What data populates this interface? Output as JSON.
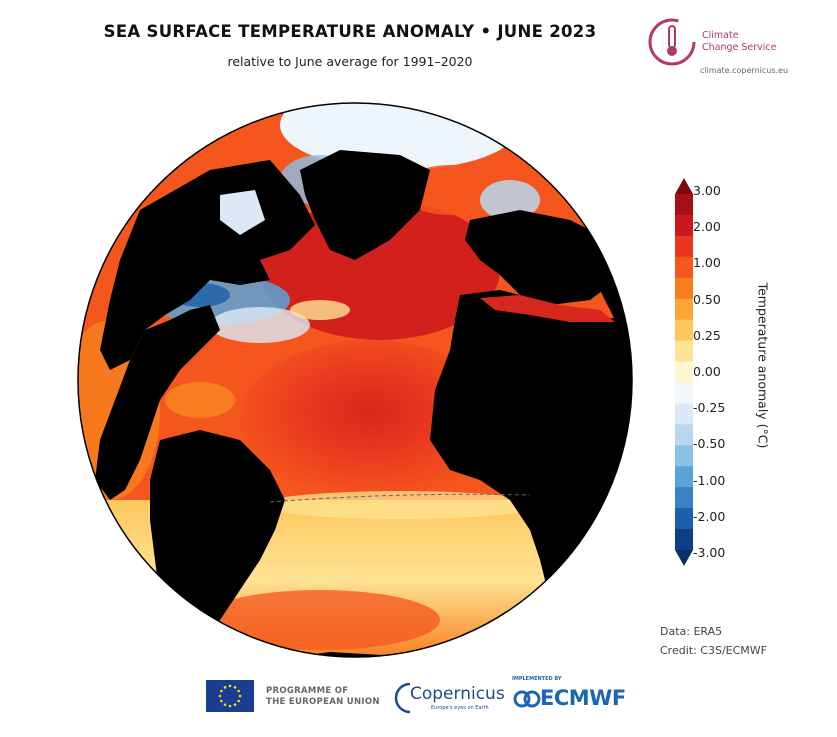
{
  "header": {
    "title": "SEA SURFACE TEMPERATURE ANOMALY • JUNE 2023",
    "subtitle": "relative to June average for 1991–2020"
  },
  "logo_c3s": {
    "line1": "Climate",
    "line2": "Change Service",
    "url": "climate.copernicus.eu"
  },
  "colorbar": {
    "title": "Temperature anomaly (°C)",
    "ticks": [
      "3.00",
      "2.00",
      "1.00",
      "0.50",
      "0.25",
      "0.00",
      "-0.25",
      "-0.50",
      "-1.00",
      "-2.00",
      "-3.00"
    ],
    "colors": [
      "#a50f15",
      "#cb181d",
      "#e8361f",
      "#f4561d",
      "#f77d1f",
      "#fba534",
      "#fdc75c",
      "#fee394",
      "#fff6d0",
      "#f3f8fc",
      "#dbeaf6",
      "#b9d8ef",
      "#8cc1e6",
      "#5ba4d8",
      "#3582c4",
      "#1c5ea8",
      "#0d3e86"
    ]
  },
  "credits": {
    "data": "Data: ERA5",
    "credit": "Credit: C3S/ECMWF"
  },
  "footer": {
    "eu_line1": "PROGRAMME OF",
    "eu_line2": "THE EUROPEAN UNION",
    "copernicus": "Copernicus",
    "copernicus_sub": "Europe's eyes on Earth",
    "ecmwf_impl": "IMPLEMENTED BY",
    "ecmwf": "ECMWF"
  },
  "colors": {
    "land": "#000000",
    "ocean_warm": "#f05a1c",
    "ocean_hot": "#d7261e",
    "ocean_mild": "#fba534",
    "ocean_cool": "#8cc1e6",
    "ice": "#eef6fb",
    "brand_c3s": "#b03a6a",
    "brand_ecmwf": "#1e66b3"
  }
}
